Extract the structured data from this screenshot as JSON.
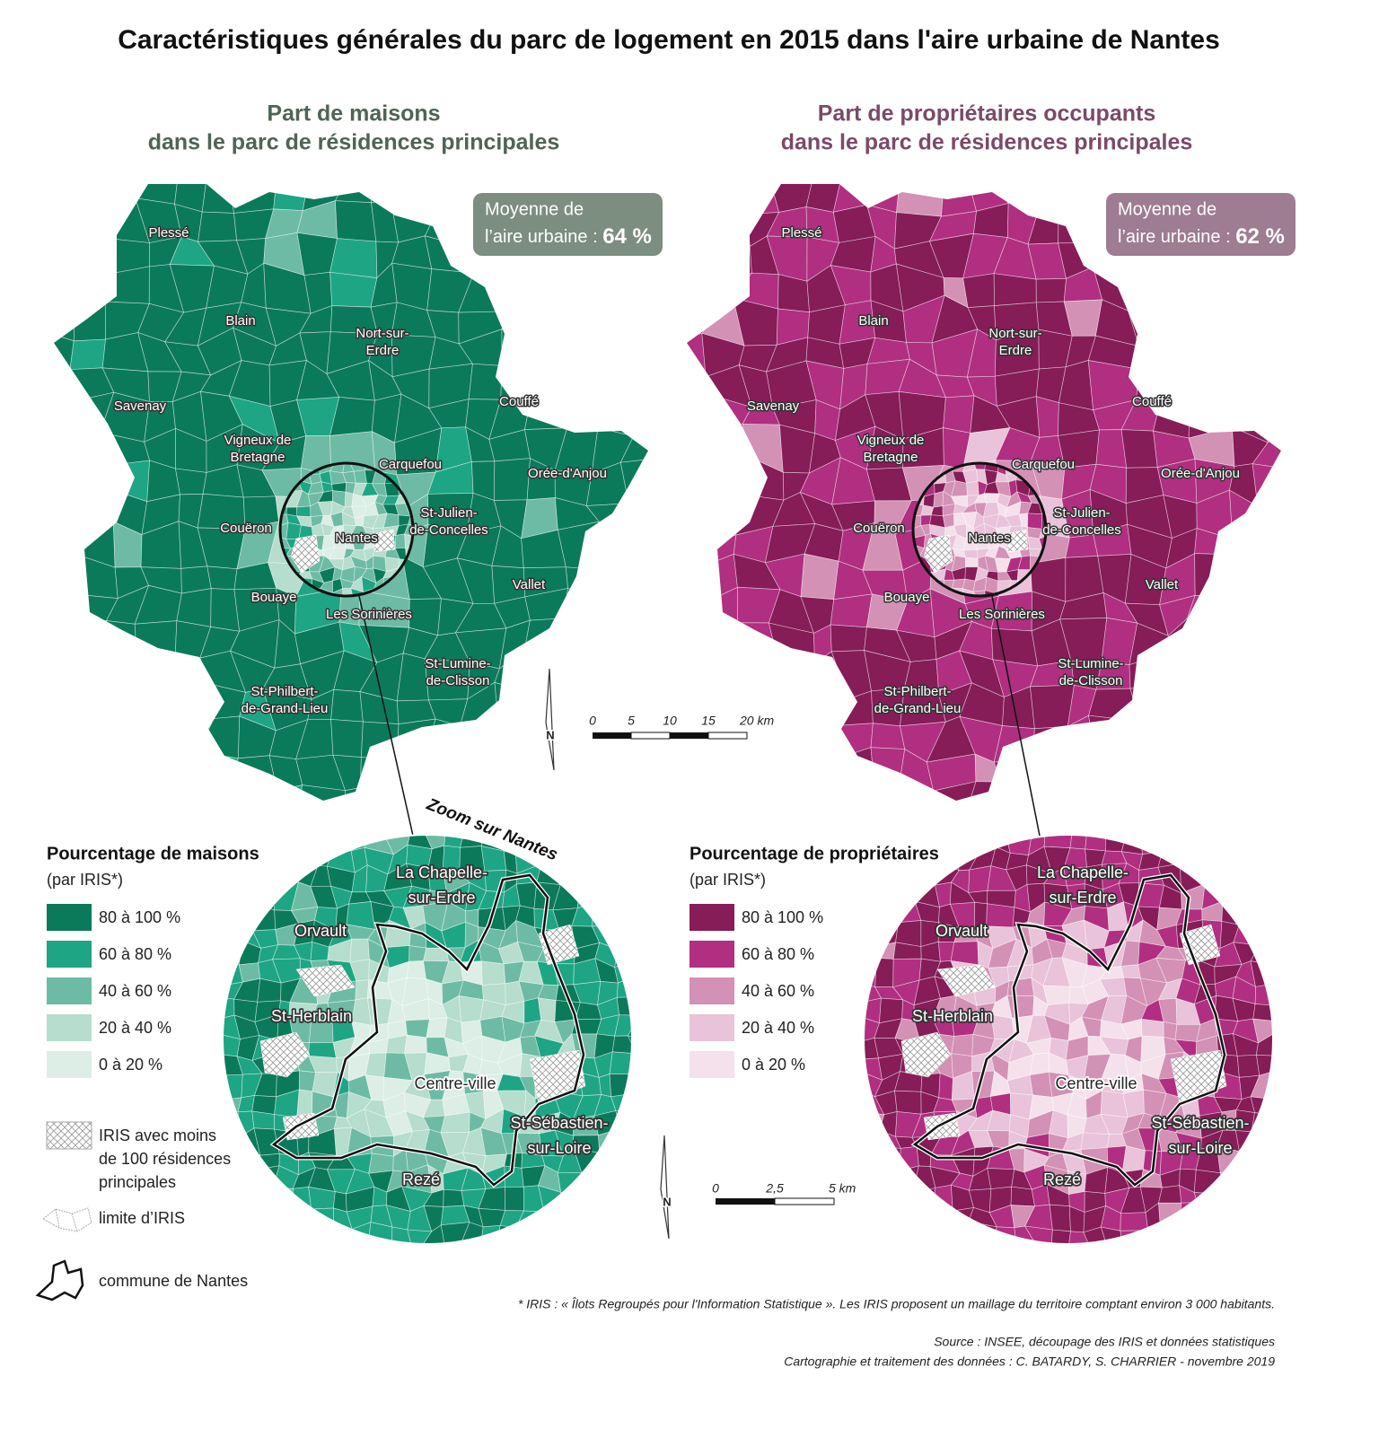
{
  "title": "Caractéristiques générales du parc de logement en 2015 dans l'aire urbaine de Nantes",
  "maps": [
    {
      "title": [
        "Part de maisons",
        "dans le parc de résidences principales"
      ],
      "title_color": "#4f6455",
      "average": {
        "lines": [
          "Moyenne de",
          "l’aire urbaine : "
        ],
        "value": "64 %",
        "color": "#7b8e7f"
      },
      "legend": {
        "title": "Pourcentage de maisons",
        "subtitle": "(par IRIS*)",
        "classes": [
          {
            "label": "80 à 100 %",
            "color": "#0b7a5a"
          },
          {
            "label": "60 à 80 %",
            "color": "#1ea584"
          },
          {
            "label": "40 à 60 %",
            "color": "#6dbba4"
          },
          {
            "label": "20 à 40 %",
            "color": "#b6ddcd"
          },
          {
            "label": "0 à 20 %",
            "color": "#dceee6"
          }
        ]
      }
    },
    {
      "title": [
        "Part de propriétaires occupants",
        "dans le parc de résidences principales"
      ],
      "title_color": "#7b4a68",
      "average": {
        "lines": [
          "Moyenne de",
          "l’aire urbaine : "
        ],
        "value": "62 %",
        "color": "#9e7c91"
      },
      "legend": {
        "title": "Pourcentage de propriétaires",
        "subtitle": "(par IRIS*)",
        "classes": [
          {
            "label": "80 à 100 %",
            "color": "#861c58"
          },
          {
            "label": "60 à 80 %",
            "color": "#b02f80"
          },
          {
            "label": "40 à 60 %",
            "color": "#d391b5"
          },
          {
            "label": "20 à 40 %",
            "color": "#e9c3d9"
          },
          {
            "label": "0 à 20 %",
            "color": "#f4e1ec"
          }
        ]
      }
    }
  ],
  "places": [
    [
      "Plessé"
    ],
    [
      "Blain"
    ],
    [
      "Nort-sur-",
      "Erdre"
    ],
    [
      "Savenay"
    ],
    [
      "Couffé"
    ],
    [
      "Vigneux de",
      "Bretagne"
    ],
    [
      "Carquefou"
    ],
    [
      "Orée-d'Anjou"
    ],
    [
      "St-Julien-",
      "de-Concelles"
    ],
    [
      "Couëron"
    ],
    [
      "Nantes"
    ],
    [
      "Vallet"
    ],
    [
      "Bouaye"
    ],
    [
      "Les Sorinières"
    ],
    [
      "St-Lumine-",
      "de-Clisson"
    ],
    [
      "St-Philbert-",
      "de-Grand-Lieu"
    ]
  ],
  "zoom": {
    "title": "Zoom sur Nantes",
    "places": [
      [
        "La Chapelle-",
        "sur-Erdre"
      ],
      [
        "Orvault"
      ],
      [
        "St-Herblain"
      ],
      [
        "Centre-ville"
      ],
      [
        "St-Sébastien-",
        "sur-Loire"
      ],
      [
        "Rezé"
      ]
    ]
  },
  "legend_extra": {
    "hatch": [
      "IRIS avec moins",
      "de 100 résidences",
      "principales"
    ],
    "iris": "limite d’IRIS",
    "commune": "commune de Nantes"
  },
  "north": "N",
  "scale_map": [
    "0",
    "5",
    "10",
    "15",
    "20 km"
  ],
  "scale_zoom": [
    "0",
    "2,5",
    "5 km"
  ],
  "footnote": "* IRIS : « Îlots Regroupés pour l'Information Statistique ». Les IRIS proposent un maillage du territoire comptant environ 3 000 habitants.",
  "source": [
    "Source : INSEE, découpage des IRIS et données statistiques",
    "Cartographie et traitement des données  : C. BATARDY, S. CHARRIER - novembre 2019"
  ]
}
